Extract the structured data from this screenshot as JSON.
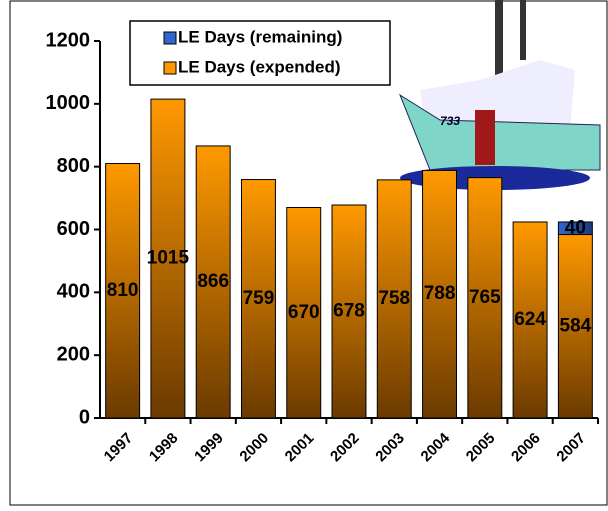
{
  "chart_data": {
    "type": "stacked-bar",
    "categories": [
      "1997",
      "1998",
      "1999",
      "2000",
      "2001",
      "2002",
      "2003",
      "2004",
      "2005",
      "2006",
      "2007"
    ],
    "series": [
      {
        "name": "LE Days (expended)",
        "color": "#ff9900",
        "values": [
          810,
          1015,
          866,
          759,
          670,
          678,
          758,
          788,
          765,
          624,
          584
        ]
      },
      {
        "name": "LE Days (remaining)",
        "color": "#3366cc",
        "values": [
          null,
          null,
          null,
          null,
          null,
          null,
          null,
          null,
          null,
          null,
          40
        ]
      }
    ],
    "ylim": [
      0,
      1200
    ],
    "yticks": [
      0,
      200,
      400,
      600,
      800,
      1000,
      1200
    ],
    "grid": false
  }
}
